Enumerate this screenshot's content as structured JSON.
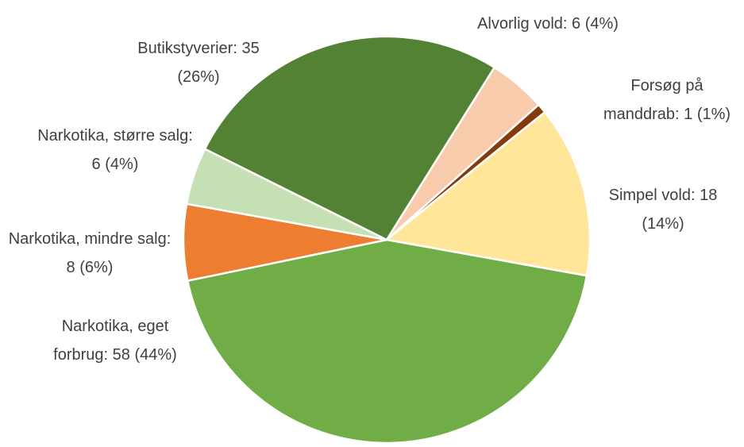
{
  "chart_data": {
    "type": "pie",
    "categories": [
      "Alvorlig vold",
      "Forsøg på manddrab",
      "Simpel vold",
      "Narkotika, eget forbrug",
      "Narkotika, mindre salg",
      "Narkotika, større salg",
      "Butikstyverier"
    ],
    "values": [
      6,
      1,
      18,
      58,
      8,
      6,
      35
    ],
    "value_labels": [
      "6 (4%)",
      "1 (1%)",
      "18 (14%)",
      "58 (44%)",
      "8 (6%)",
      "6 (4%)",
      "35 (26%)"
    ],
    "colors": [
      "#f8cbad",
      "#843c0c",
      "#ffe699",
      "#70ad47",
      "#ed7d31",
      "#c5e0b4",
      "#548235"
    ]
  }
}
